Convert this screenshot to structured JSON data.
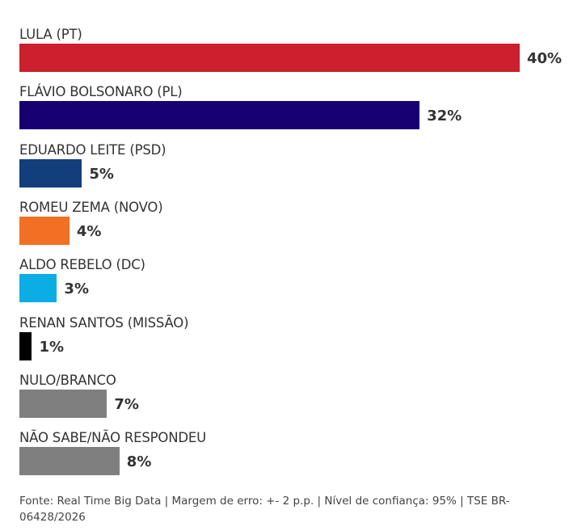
{
  "chart_data": {
    "type": "bar",
    "orientation": "horizontal",
    "categories": [
      "LULA (PT)",
      "FLÁVIO BOLSONARO (PL)",
      "EDUARDO LEITE (PSD)",
      "ROMEU ZEMA (NOVO)",
      "ALDO REBELO (DC)",
      "RENAN SANTOS (MISSÃO)",
      "NULO/BRANCO",
      "NÃO SABE/NÃO RESPONDEU"
    ],
    "values": [
      40,
      32,
      5,
      4,
      3,
      1,
      7,
      8
    ],
    "value_labels": [
      "40%",
      "32%",
      "5%",
      "4%",
      "3%",
      "1%",
      "7%",
      "8%"
    ],
    "colors": [
      "#cc202c",
      "#170072",
      "#123f7c",
      "#f26f23",
      "#0aaee5",
      "#000000",
      "#7f7f7f",
      "#7f7f7f"
    ],
    "xlim": [
      0,
      40
    ],
    "grid": false
  },
  "footer": {
    "source": "Fonte: Real Time Big Data | Margem de erro: +- 2 p.p. | Nível de confiança: 95% | TSE BR-06428/2026"
  }
}
